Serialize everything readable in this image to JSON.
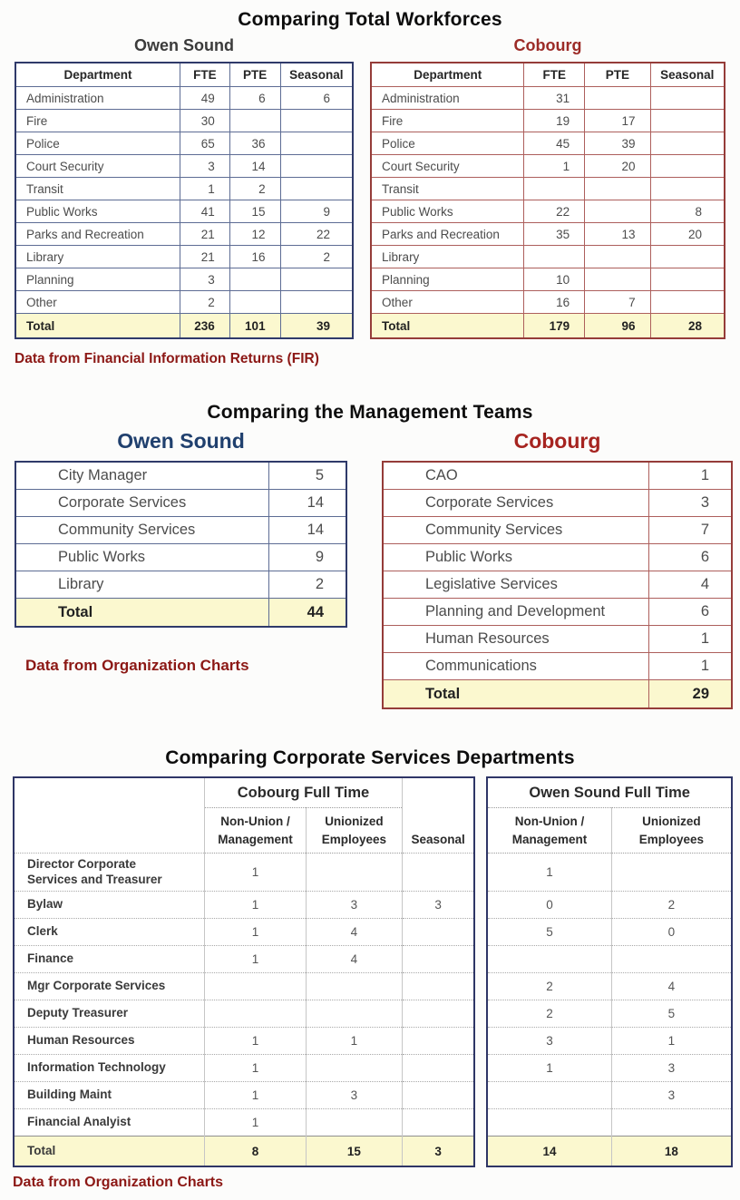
{
  "colors": {
    "navy_border": "#2f3a6a",
    "red_border": "#953c39",
    "total_row_yellow": "#fbf8cf",
    "owen_heading_blue": "#20406e",
    "cobourg_heading_red": "#a62420",
    "footnote_red": "#8c1815"
  },
  "section1": {
    "title": "Comparing Total Workforces",
    "footnote": "Data from Financial Information Returns (FIR)",
    "left": {
      "heading": "Owen Sound",
      "columns": [
        "Department",
        "FTE",
        "PTE",
        "Seasonal"
      ],
      "rows": [
        [
          "Administration",
          "49",
          "6",
          "6"
        ],
        [
          "Fire",
          "30",
          "",
          ""
        ],
        [
          "Police",
          "65",
          "36",
          ""
        ],
        [
          "Court Security",
          "3",
          "14",
          ""
        ],
        [
          "Transit",
          "1",
          "2",
          ""
        ],
        [
          "Public Works",
          "41",
          "15",
          "9"
        ],
        [
          "Parks and Recreation",
          "21",
          "12",
          "22"
        ],
        [
          "Library",
          "21",
          "16",
          "2"
        ],
        [
          "Planning",
          "3",
          "",
          ""
        ],
        [
          "Other",
          "2",
          "",
          ""
        ]
      ],
      "total": [
        "Total",
        "236",
        "101",
        "39"
      ]
    },
    "right": {
      "heading": "Cobourg",
      "columns": [
        "Department",
        "FTE",
        "PTE",
        "Seasonal"
      ],
      "rows": [
        [
          "Administration",
          "31",
          "",
          ""
        ],
        [
          "Fire",
          "19",
          "17",
          ""
        ],
        [
          "Police",
          "45",
          "39",
          ""
        ],
        [
          "Court Security",
          "1",
          "20",
          ""
        ],
        [
          "Transit",
          "",
          "",
          ""
        ],
        [
          "Public Works",
          "22",
          "",
          "8"
        ],
        [
          "Parks and Recreation",
          "35",
          "13",
          "20"
        ],
        [
          "Library",
          "",
          "",
          ""
        ],
        [
          "Planning",
          "10",
          "",
          ""
        ],
        [
          "Other",
          "16",
          "7",
          ""
        ]
      ],
      "total": [
        "Total",
        "179",
        "96",
        "28"
      ]
    }
  },
  "section2": {
    "title": "Comparing the Management Teams",
    "footnote": "Data from Organization Charts",
    "left": {
      "heading": "Owen Sound",
      "rows": [
        [
          "City Manager",
          "5"
        ],
        [
          "Corporate Services",
          "14"
        ],
        [
          "Community Services",
          "14"
        ],
        [
          "Public Works",
          "9"
        ],
        [
          "Library",
          "2"
        ]
      ],
      "total": [
        "Total",
        "44"
      ]
    },
    "right": {
      "heading": "Cobourg",
      "rows": [
        [
          "CAO",
          "1"
        ],
        [
          "Corporate Services",
          "3"
        ],
        [
          "Community Services",
          "7"
        ],
        [
          "Public Works",
          "6"
        ],
        [
          "Legislative Services",
          "4"
        ],
        [
          "Planning and Development",
          "6"
        ],
        [
          "Human Resources",
          "1"
        ],
        [
          "Communications",
          "1"
        ]
      ],
      "total": [
        "Total",
        "29"
      ]
    }
  },
  "section3": {
    "title": "Comparing Corporate Services Departments",
    "footnote": "Data from Organization Charts",
    "left": {
      "group_heading": "Cobourg Full Time",
      "columns": [
        "Non-Union /\nManagement",
        "Unionized\nEmployees",
        "Seasonal"
      ],
      "rows": [
        [
          "Director Corporate\nServices and Treasurer",
          "1",
          "",
          ""
        ],
        [
          "Bylaw",
          "1",
          "3",
          "3"
        ],
        [
          "Clerk",
          "1",
          "4",
          ""
        ],
        [
          "Finance",
          "1",
          "4",
          ""
        ],
        [
          "Mgr Corporate Services",
          "",
          "",
          ""
        ],
        [
          "Deputy Treasurer",
          "",
          "",
          ""
        ],
        [
          "Human Resources",
          "1",
          "1",
          ""
        ],
        [
          "Information Technology",
          "1",
          "",
          ""
        ],
        [
          "Building Maint",
          "1",
          "3",
          ""
        ],
        [
          "Financial Analyist",
          "1",
          "",
          ""
        ]
      ],
      "total": [
        "Total",
        "8",
        "15",
        "3"
      ]
    },
    "right": {
      "group_heading": "Owen Sound Full Time",
      "columns": [
        "Non-Union /\nManagement",
        "Unionized\nEmployees"
      ],
      "rows": [
        [
          "1",
          ""
        ],
        [
          "0",
          "2"
        ],
        [
          "5",
          "0"
        ],
        [
          "",
          ""
        ],
        [
          "2",
          "4"
        ],
        [
          "2",
          "5"
        ],
        [
          "3",
          "1"
        ],
        [
          "1",
          "3"
        ],
        [
          "",
          "3"
        ],
        [
          "",
          ""
        ]
      ],
      "total": [
        "14",
        "18"
      ]
    }
  }
}
